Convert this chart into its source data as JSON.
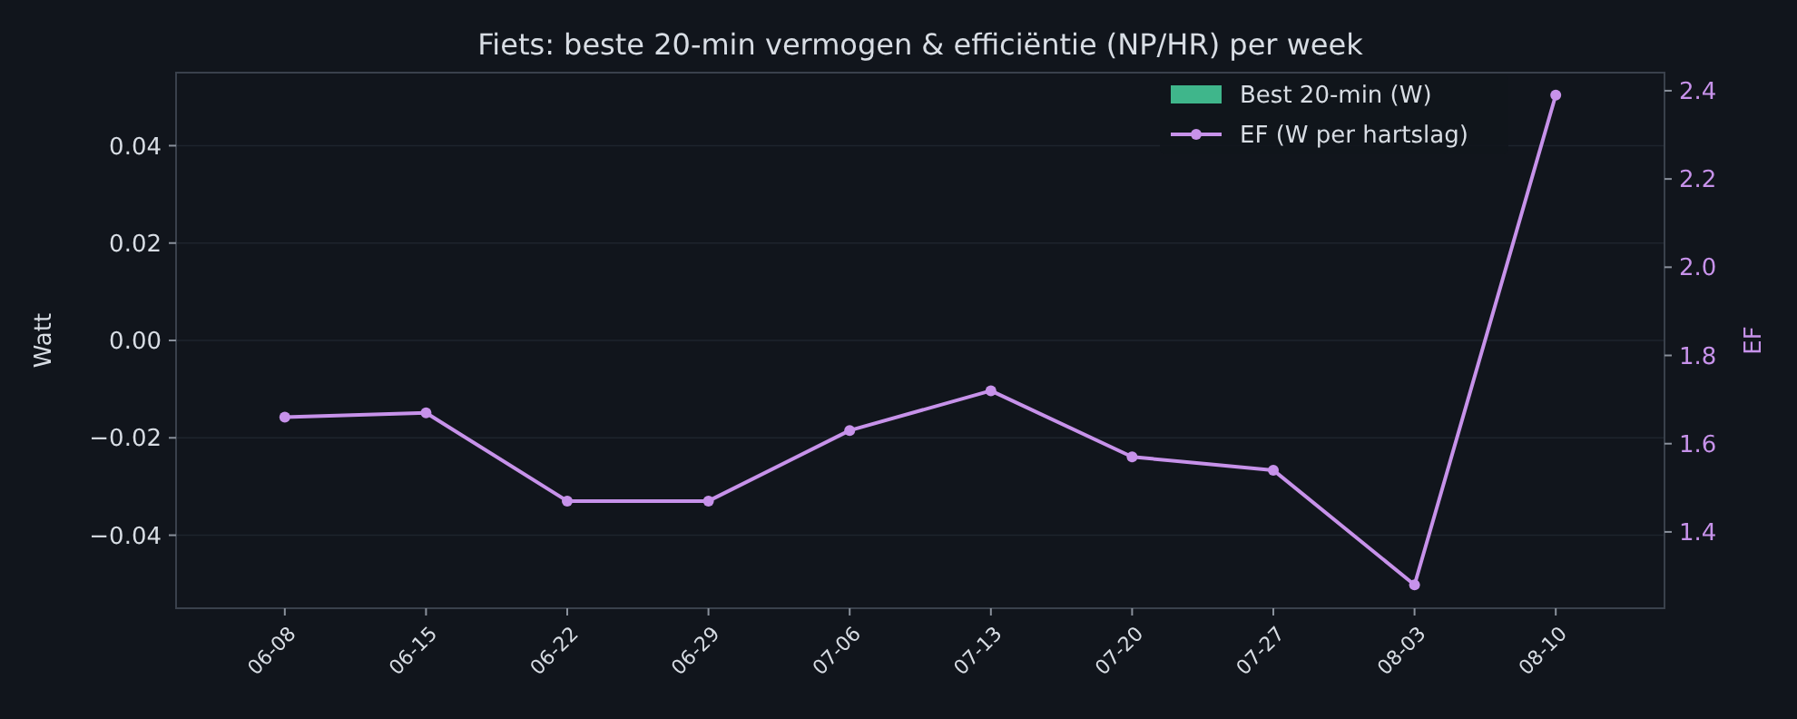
{
  "chart_data": {
    "type": "bar",
    "title": "Fiets: beste 20-min vermogen & efficiëntie (NP/HR) per week",
    "ylabel": "Watt",
    "y2label": "EF",
    "categories": [
      "06-08",
      "06-15",
      "06-22",
      "06-29",
      "07-06",
      "07-13",
      "07-20",
      "07-27",
      "08-03",
      "08-10"
    ],
    "series": [
      {
        "name": "Best 20-min (W)",
        "color": "#3fb68b",
        "values": [
          null,
          null,
          null,
          null,
          null,
          null,
          null,
          null,
          null,
          null
        ]
      },
      {
        "name": "EF (W per hartslag)",
        "type": "line",
        "axis": "y2",
        "color": "#c792ea",
        "values": [
          1.66,
          1.67,
          1.47,
          1.47,
          1.63,
          1.72,
          1.57,
          1.54,
          1.28,
          2.39
        ]
      }
    ],
    "ylim": [
      -0.055,
      0.055
    ],
    "yticks": [
      {
        "value": -0.04,
        "label": "−0.04"
      },
      {
        "value": -0.02,
        "label": "−0.02"
      },
      {
        "value": 0,
        "label": "0.00"
      },
      {
        "value": 0.02,
        "label": "0.02"
      },
      {
        "value": 0.04,
        "label": "0.04"
      }
    ],
    "y2lim": [
      1.227,
      2.441
    ],
    "y2ticks": [
      {
        "value": 1.4,
        "label": "1.4"
      },
      {
        "value": 1.6,
        "label": "1.6"
      },
      {
        "value": 1.8,
        "label": "1.8"
      },
      {
        "value": 2.0,
        "label": "2.0"
      },
      {
        "value": 2.2,
        "label": "2.2"
      },
      {
        "value": 2.4,
        "label": "2.4"
      }
    ],
    "grid": "y",
    "legend": "top right",
    "marker": "circle",
    "line_style": "solid"
  }
}
